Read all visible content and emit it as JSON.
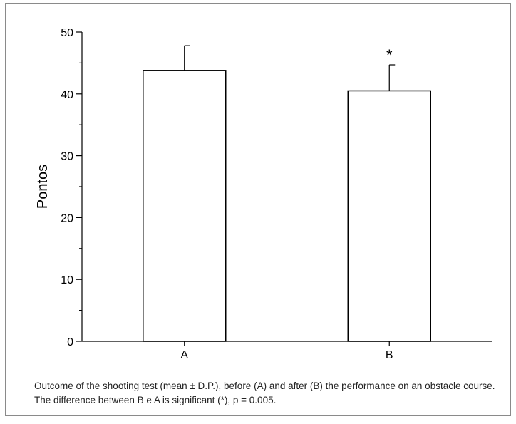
{
  "chart_data": {
    "type": "bar",
    "categories": [
      "A",
      "B"
    ],
    "values": [
      43.8,
      40.5
    ],
    "errors": [
      4.0,
      4.2
    ],
    "significance_marks": [
      "",
      "*"
    ],
    "title": "",
    "xlabel": "",
    "ylabel": "Pontos",
    "ylim": [
      0,
      50
    ],
    "yticks": [
      0,
      10,
      20,
      30,
      40,
      50
    ],
    "grid": false,
    "legend": "none",
    "colors": {
      "bar_fill": "#ffffff",
      "bar_stroke": "#000000",
      "axis": "#000000"
    }
  },
  "caption": "Outcome of the shooting test (mean ± D.P.), before (A) and after (B) the performance on an obstacle course. The difference between B e A is significant (*), p = 0.005."
}
